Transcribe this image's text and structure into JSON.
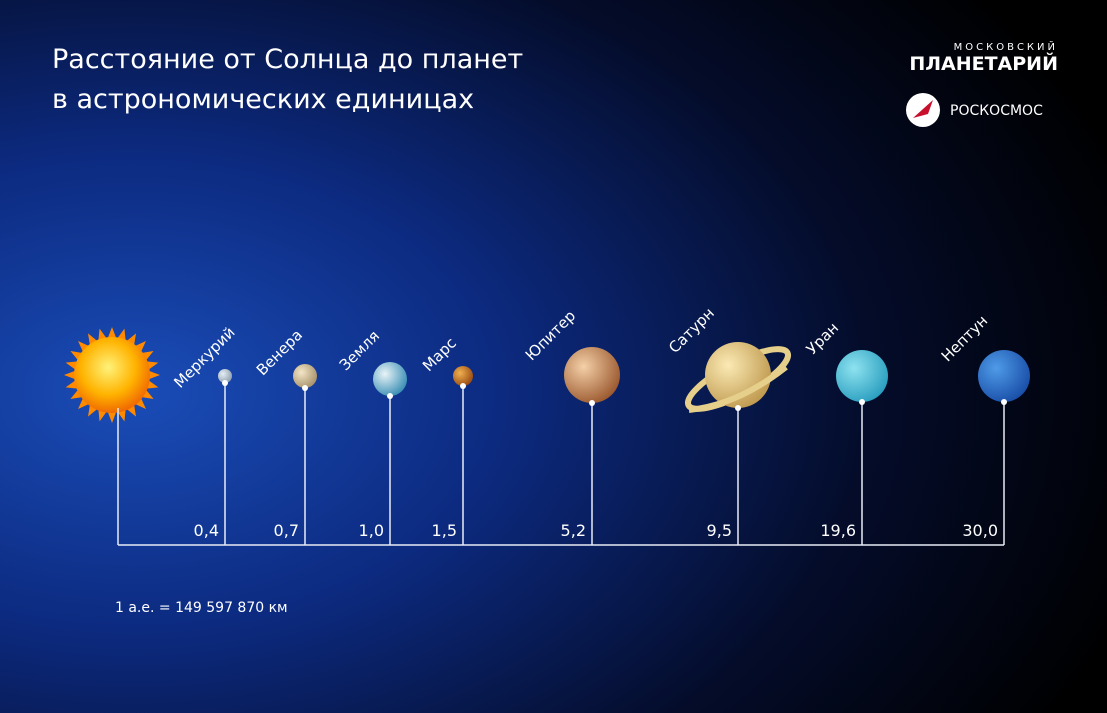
{
  "header": {
    "title_lines": [
      "Расстояние от Солнца до планет",
      "в астрономических единицах"
    ],
    "logo_small": "МОСКОВСКИЙ",
    "logo_big": "ПЛАНЕТАРИЙ",
    "partner": "РОСКОСМОС"
  },
  "planets": [
    {
      "name": "Меркурий",
      "distance": "0,4"
    },
    {
      "name": "Венера",
      "distance": "0,7"
    },
    {
      "name": "Земля",
      "distance": "1,0"
    },
    {
      "name": "Марс",
      "distance": "1,5"
    },
    {
      "name": "Юпитер",
      "distance": "5,2"
    },
    {
      "name": "Сатурн",
      "distance": "9,5"
    },
    {
      "name": "Уран",
      "distance": "19,6"
    },
    {
      "name": "Нептун",
      "distance": "30,0"
    }
  ],
  "footnote": "1 а.е. = 149 597 870 км"
}
